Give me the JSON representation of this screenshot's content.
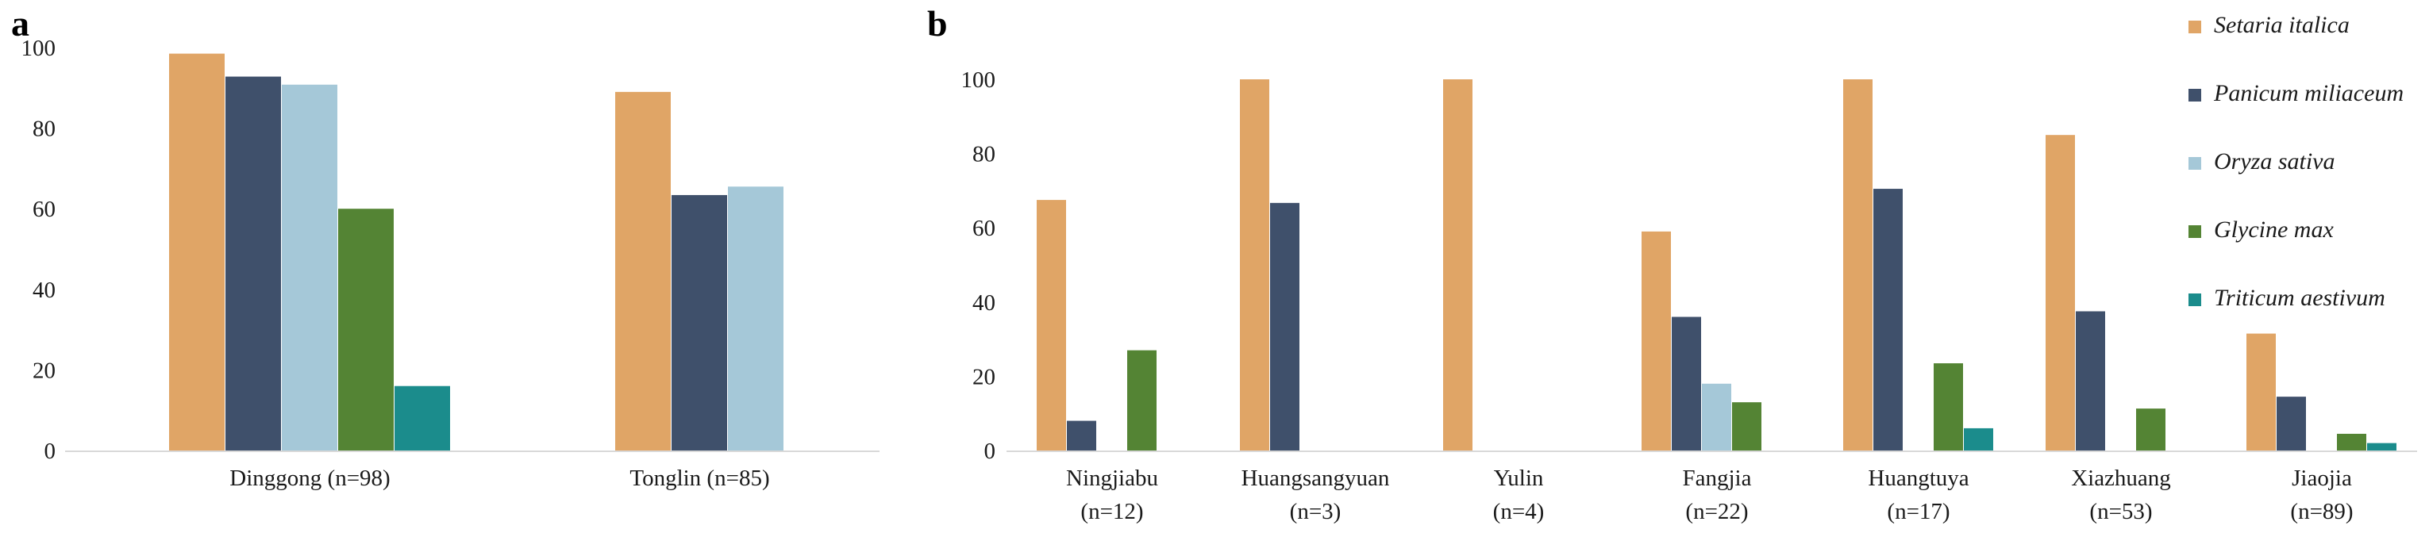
{
  "chart_data": [
    {
      "panel": "a",
      "type": "bar",
      "categories": [
        "Dinggong (n=98)",
        "Tonglin (n=85)"
      ],
      "series": [
        {
          "name": "Setaria italica",
          "values": [
            98.5,
            89
          ]
        },
        {
          "name": "Panicum miliaceum",
          "values": [
            92.8,
            63.4
          ]
        },
        {
          "name": "Oryza sativa",
          "values": [
            90.8,
            65.5
          ]
        },
        {
          "name": "Glycine max",
          "values": [
            60,
            0
          ]
        },
        {
          "name": "Triticum aestivum",
          "values": [
            16,
            0
          ]
        }
      ],
      "ylim": [
        0,
        100
      ],
      "yticks": [
        "0",
        "20",
        "40",
        "60",
        "80",
        "100"
      ],
      "grid": false
    },
    {
      "panel": "b",
      "type": "bar",
      "categories": [
        [
          "Ningjiabu",
          "(n=12)"
        ],
        [
          "Huangsangyuan",
          "(n=3)"
        ],
        [
          "Yulin",
          "(n=4)"
        ],
        [
          "Fangjia",
          "(n=22)"
        ],
        [
          "Huangtuya",
          "(n=17)"
        ],
        [
          "Xiazhuang",
          "(n=53)"
        ],
        [
          "Jiaojia",
          "(n=89)"
        ]
      ],
      "series": [
        {
          "name": "Setaria italica",
          "values": [
            67.5,
            100,
            100,
            59,
            100,
            85,
            31.5
          ]
        },
        {
          "name": "Panicum miliaceum",
          "values": [
            8,
            66.7,
            0,
            36,
            70.5,
            37.5,
            14.5
          ]
        },
        {
          "name": "Oryza sativa",
          "values": [
            0,
            0,
            0,
            18,
            0,
            0,
            0
          ]
        },
        {
          "name": "Glycine max",
          "values": [
            27,
            0,
            0,
            13,
            23.5,
            11.3,
            4.5
          ]
        },
        {
          "name": "Triticum aestivum",
          "values": [
            0,
            0,
            0,
            0,
            6,
            0,
            2
          ]
        }
      ],
      "ylim": [
        0,
        100
      ],
      "yticks": [
        "0",
        "20",
        "40",
        "60",
        "80",
        "100"
      ],
      "grid": false,
      "legend_position": "right"
    }
  ],
  "panel_labels": [
    "a",
    "b"
  ],
  "legend": [
    {
      "name": "Setaria italica",
      "color": "#e0a566"
    },
    {
      "name": "Panicum miliaceum",
      "color": "#3f506b"
    },
    {
      "name": "Oryza sativa",
      "color": "#a5c8d8"
    },
    {
      "name": "Glycine max",
      "color": "#548434"
    },
    {
      "name": "Triticum aestivum",
      "color": "#1b8c8c"
    }
  ],
  "colors": {
    "series": [
      "#e0a566",
      "#3f506b",
      "#a5c8d8",
      "#548434",
      "#1b8c8c"
    ],
    "axis": "#d9d9d9",
    "text": "#1a1a1a"
  }
}
